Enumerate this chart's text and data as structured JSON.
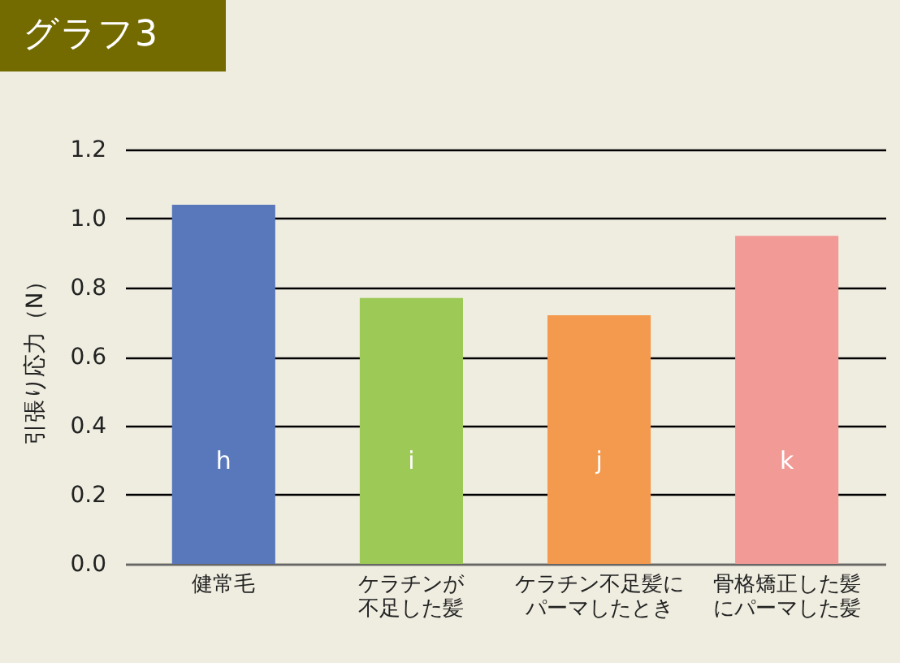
{
  "chart_data": {
    "type": "bar",
    "title": "グラフ3",
    "ylabel": "引張り応力（N）",
    "categories": [
      "健常毛",
      "ケラチンが不足した髪",
      "ケラチン不足髪にパーマしたとき",
      "骨格矯正した髪にパーマした髪"
    ],
    "values": [
      1.04,
      0.77,
      0.72,
      0.95
    ],
    "colors": [
      "#5878bb",
      "#9dc956",
      "#f39a4e",
      "#f19a96"
    ],
    "ylim": [
      0,
      1.2
    ],
    "yticks": [
      {
        "value": 0,
        "label": "0.0"
      },
      {
        "value": 0.2,
        "label": "0.2"
      },
      {
        "value": 0.4,
        "label": "0.4"
      },
      {
        "value": 0.6,
        "label": "0.6"
      },
      {
        "value": 0.8,
        "label": "0.8"
      },
      {
        "value": 1.0,
        "label": "1.0"
      },
      {
        "value": 1.2,
        "label": "1.2"
      }
    ],
    "grid": "y",
    "annotations": [
      "h",
      "i",
      "j",
      "k"
    ]
  }
}
